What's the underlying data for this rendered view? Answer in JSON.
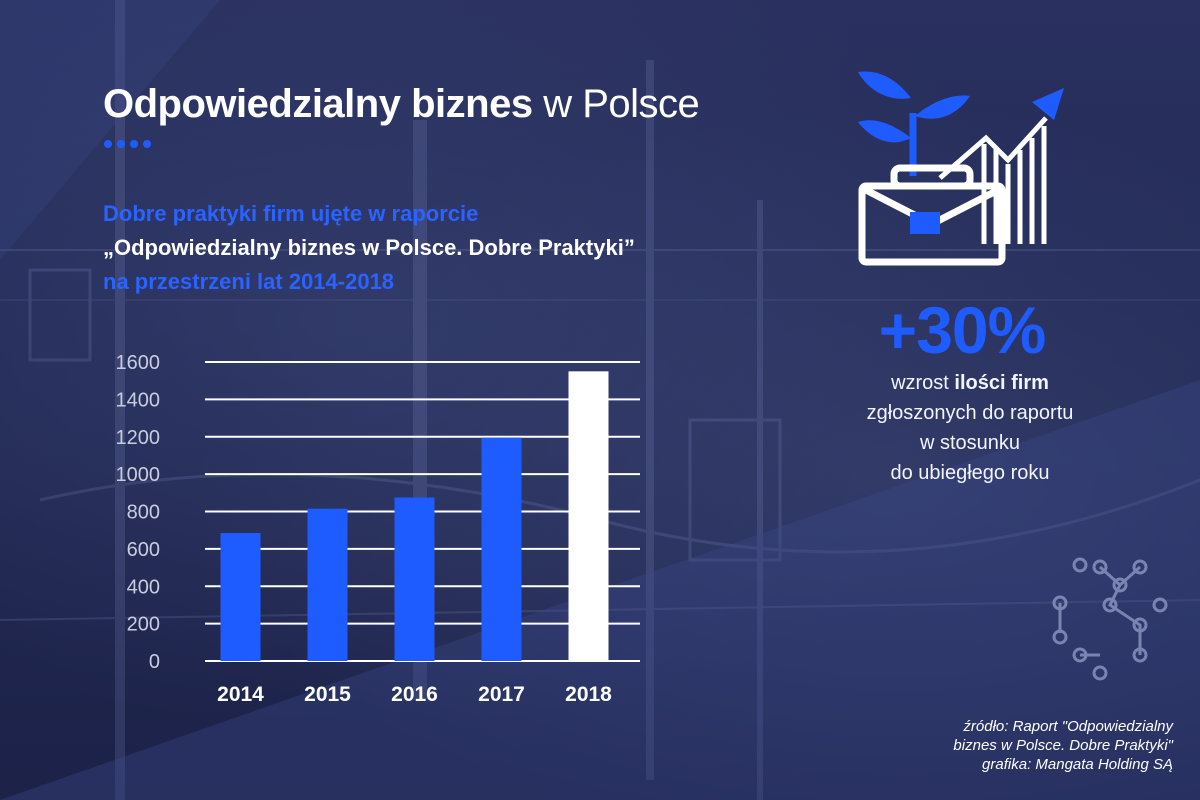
{
  "header": {
    "title_bold": "Odpowiedzialny biznes",
    "title_light": "w Polsce"
  },
  "subtitle": {
    "line1": "Dobre praktyki firm ujęte w raporcie",
    "line2": "„Odpowiedzialny biznes w Polsce. Dobre Praktyki”",
    "line3": "na przestrzeni lat 2014-2018"
  },
  "stat": {
    "value": "+30%",
    "desc_prefix": "wzrost ",
    "desc_bold": "ilości firm",
    "desc_line2": "zgłoszonych do raportu",
    "desc_line3": "w stosunku",
    "desc_line4": "do ubiegłego roku"
  },
  "source": {
    "line1": "źródło: Raport \"Odpowiedzialny",
    "line2": "biznes w Polsce. Dobre Praktyki\"",
    "line3": "grafika: Mangata Holding SĄ"
  },
  "icons": [
    "plant-icon",
    "briefcase-icon",
    "growth-chart-arrow-icon",
    "network-nodes-icon"
  ],
  "colors": {
    "accent_blue": "#1f5cff",
    "subtitle_blue": "#2a63ff",
    "highlight_bar": "#ffffff",
    "background": "#222a55"
  },
  "chart_data": {
    "type": "bar",
    "categories": [
      "2014",
      "2015",
      "2016",
      "2017",
      "2018"
    ],
    "values": [
      685,
      815,
      875,
      1195,
      1550
    ],
    "highlight_index": 4,
    "ylim": [
      0,
      1600
    ],
    "yticks": [
      "0",
      "200",
      "400",
      "600",
      "800",
      "1000",
      "1200",
      "1400",
      "1600"
    ],
    "grid": true,
    "title": "",
    "xlabel": "",
    "ylabel": ""
  }
}
